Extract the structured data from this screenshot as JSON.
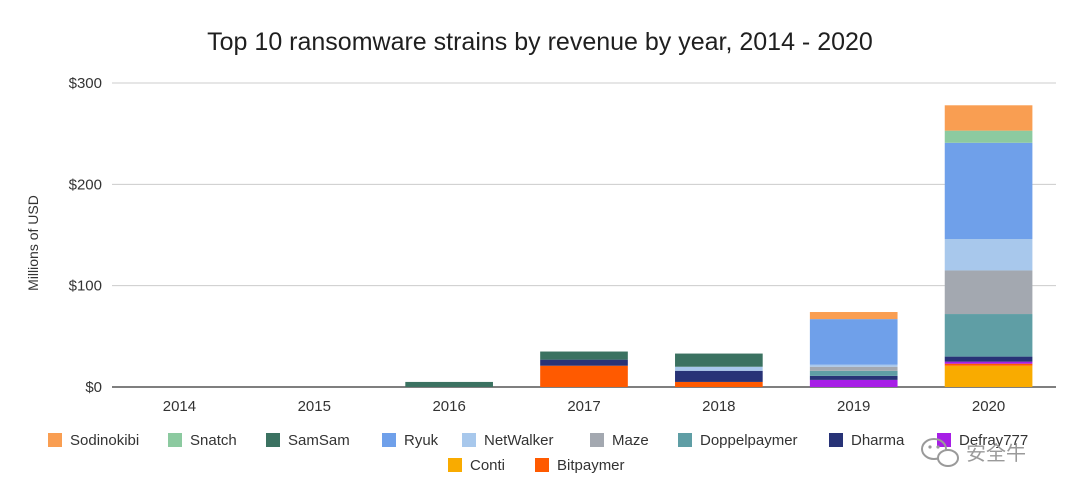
{
  "chart_data": {
    "type": "bar",
    "stacked": true,
    "title": "Top 10 ransomware strains by revenue by year, 2014 - 2020",
    "ylabel": "Millions of USD",
    "xlabel": "",
    "ylim": [
      0,
      300
    ],
    "yticks": [
      {
        "value": 0,
        "label": "$0"
      },
      {
        "value": 100,
        "label": "$100"
      },
      {
        "value": 200,
        "label": "$200"
      },
      {
        "value": 300,
        "label": "$300"
      }
    ],
    "grid": true,
    "legend_position": "bottom",
    "categories": [
      "2014",
      "2015",
      "2016",
      "2017",
      "2018",
      "2019",
      "2020"
    ],
    "series": [
      {
        "name": "Conti",
        "color": "#f9ab00",
        "values": [
          0,
          0,
          0,
          0,
          0,
          0,
          21
        ]
      },
      {
        "name": "Bitpaymer",
        "color": "#ff5a00",
        "values": [
          0,
          0,
          0,
          21,
          5,
          0,
          2
        ]
      },
      {
        "name": "Defray777",
        "color": "#a71ee6",
        "values": [
          0,
          0,
          0,
          0,
          0,
          7,
          2
        ]
      },
      {
        "name": "Dharma",
        "color": "#283377",
        "values": [
          0,
          0,
          0,
          6,
          11,
          4,
          5
        ]
      },
      {
        "name": "Doppelpaymer",
        "color": "#5f9ea5",
        "values": [
          0,
          0,
          0,
          0,
          0,
          5,
          42
        ]
      },
      {
        "name": "Maze",
        "color": "#a3a8b0",
        "values": [
          0,
          0,
          0,
          0,
          0,
          4,
          43
        ]
      },
      {
        "name": "NetWalker",
        "color": "#a8c8ec",
        "values": [
          0,
          0,
          0,
          0,
          4,
          2,
          31
        ]
      },
      {
        "name": "Ryuk",
        "color": "#6fa0ea",
        "values": [
          0,
          0,
          0,
          0,
          0,
          45,
          95
        ]
      },
      {
        "name": "SamSam",
        "color": "#3b7261",
        "values": [
          0,
          0,
          5,
          8,
          13,
          0,
          0
        ]
      },
      {
        "name": "Snatch",
        "color": "#8ccaa0",
        "values": [
          0,
          0,
          0,
          0,
          0,
          0,
          12
        ]
      },
      {
        "name": "Sodinokibi",
        "color": "#f99e52",
        "values": [
          0,
          0,
          0,
          0,
          0,
          7,
          25
        ]
      }
    ],
    "legend_order": [
      "Sodinokibi",
      "Snatch",
      "SamSam",
      "Ryuk",
      "NetWalker",
      "Maze",
      "Doppelpaymer",
      "Dharma",
      "Defray777",
      "Conti",
      "Bitpaymer"
    ]
  },
  "watermark": {
    "text": "安全牛",
    "icon": "wechat-icon"
  }
}
